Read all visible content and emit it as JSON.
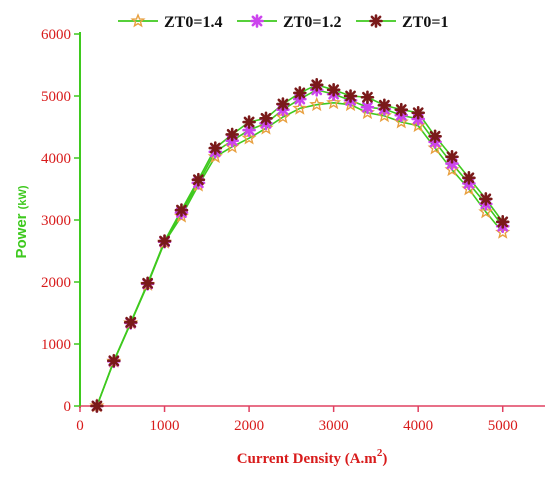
{
  "chart_data": {
    "type": "line",
    "xlabel": "Current Density (A.m",
    "xlabel_sup": "2",
    "xlabel_close": ")",
    "ylabel": "Power",
    "ylabel_unit": "(kW)",
    "xlim": [
      0,
      5500
    ],
    "ylim": [
      0,
      6000
    ],
    "xticks": [
      "0",
      "1000",
      "2000",
      "3000",
      "4000",
      "5000"
    ],
    "yticks": [
      "0",
      "1000",
      "2000",
      "3000",
      "4000",
      "5000",
      "6000"
    ],
    "grid": false,
    "legend_position": "top",
    "x": [
      200,
      400,
      600,
      800,
      1000,
      1200,
      1400,
      1600,
      1800,
      2000,
      2200,
      2400,
      2600,
      2800,
      3000,
      3200,
      3400,
      3600,
      3800,
      4000,
      4200,
      4400,
      4600,
      4800,
      5000
    ],
    "series": [
      {
        "name": "ZT0=1.4",
        "marker": "star",
        "marker_color": "#e8a040",
        "values": [
          0,
          720,
          1340,
          1960,
          2640,
          3060,
          3560,
          4020,
          4180,
          4320,
          4480,
          4660,
          4800,
          4860,
          4890,
          4860,
          4730,
          4680,
          4580,
          4520,
          4160,
          3810,
          3500,
          3130,
          2800
        ]
      },
      {
        "name": "ZT0=1.2",
        "marker": "asterisk",
        "marker_color": "#cc44ee",
        "values": [
          0,
          720,
          1340,
          1970,
          2650,
          3120,
          3600,
          4100,
          4280,
          4450,
          4560,
          4780,
          4950,
          5100,
          5030,
          4930,
          4820,
          4790,
          4690,
          4630,
          4260,
          3910,
          3590,
          3260,
          2900
        ]
      },
      {
        "name": "ZT0=1",
        "marker": "asterisk",
        "marker_color": "#7a1a1a",
        "values": [
          0,
          730,
          1350,
          1980,
          2660,
          3160,
          3650,
          4160,
          4380,
          4580,
          4640,
          4870,
          5050,
          5180,
          5100,
          5000,
          4980,
          4850,
          4780,
          4730,
          4350,
          4020,
          3680,
          3340,
          2970
        ]
      }
    ]
  },
  "colors": {
    "line": "#3ec91e",
    "axis_left": "#3ec91e",
    "axis_bottom": "#e04060",
    "tick_text": "#d81b1b"
  }
}
